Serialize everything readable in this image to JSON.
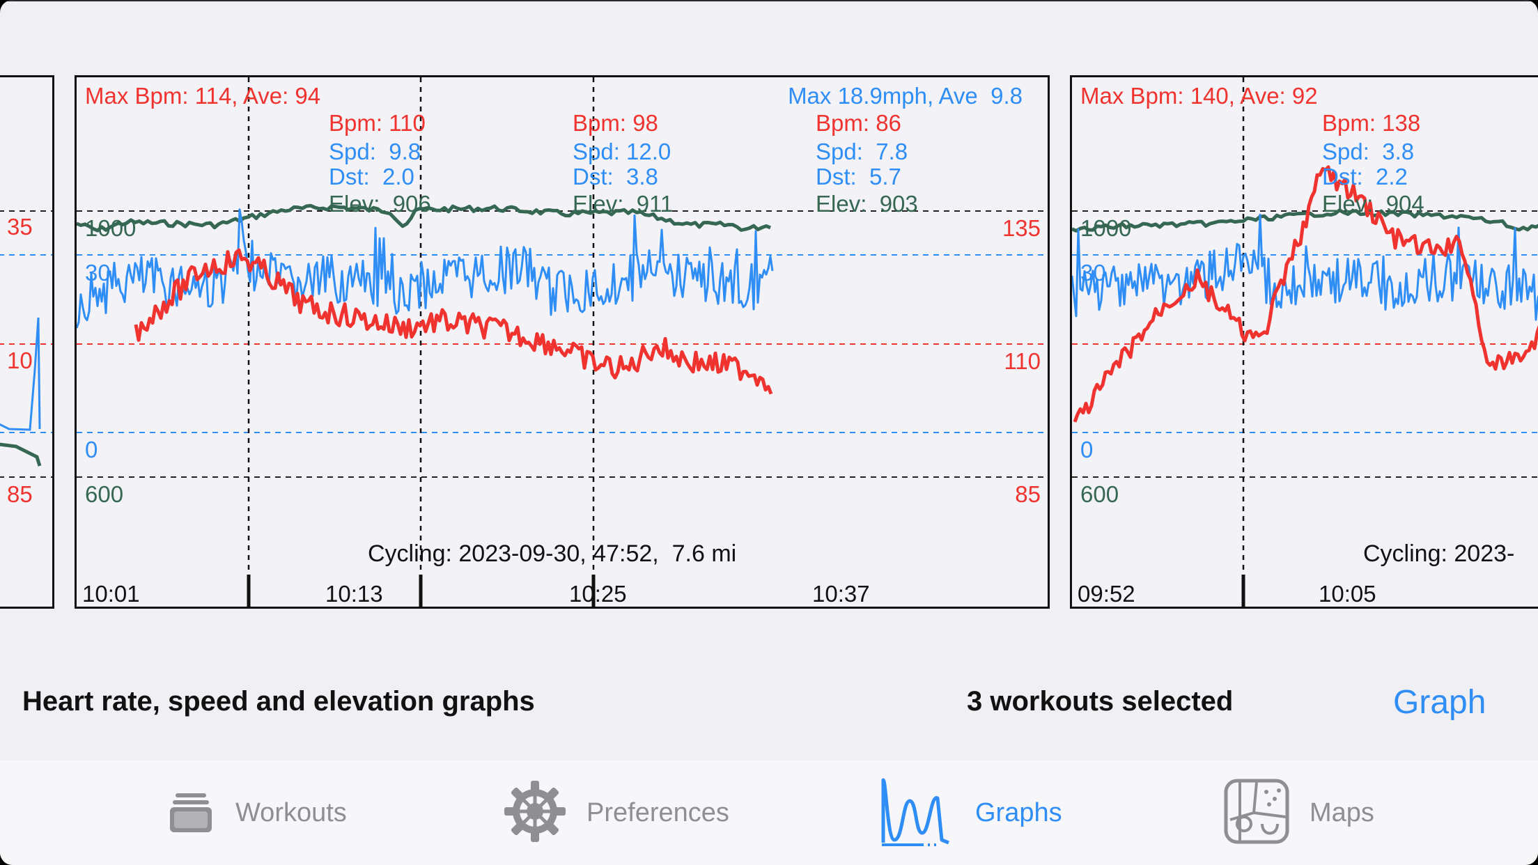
{
  "description": "Heart rate, speed and elevation graphs",
  "selection": {
    "count_label": "3 workouts selected",
    "action_label": "Graph"
  },
  "colors": {
    "heart_rate": "#f0332f",
    "speed": "#2f8ef5",
    "elevation": "#356753",
    "accent": "#2f8ef5"
  },
  "left_partial": {
    "labels": [
      "35",
      "10",
      "85"
    ]
  },
  "panels": [
    {
      "hr_summary": "Max Bpm: 114, Ave: 94",
      "speed_summary": "Max 18.9mph, Ave  9.8",
      "hr_axis": [
        "135",
        "110",
        "85"
      ],
      "elev_axis": [
        "1000",
        "600"
      ],
      "speed_axis": [
        "30",
        "0"
      ],
      "times": [
        "10:01",
        "10:13",
        "10:25",
        "10:37"
      ],
      "caption": "Cycling: 2023-09-30, 47:52,  7.6 mi",
      "readouts": [
        {
          "bpm": "Bpm: 110",
          "spd": "Spd:  9.8",
          "dst": "Dst:  2.0",
          "elev": "Elev:  906"
        },
        {
          "bpm": "Bpm: 98",
          "spd": "Spd: 12.0",
          "dst": "Dst:  3.8",
          "elev": "Elev:  911"
        },
        {
          "bpm": "Bpm: 86",
          "spd": "Spd:  7.8",
          "dst": "Dst:  5.7",
          "elev": "Elev:  903"
        }
      ]
    },
    {
      "hr_summary": "Max Bpm: 140, Ave: 92",
      "hr_axis": [],
      "elev_axis": [
        "1000",
        "600"
      ],
      "speed_axis": [
        "30",
        "0"
      ],
      "times": [
        "09:52",
        "10:05"
      ],
      "caption": "Cycling: 2023-",
      "readouts": [
        {
          "bpm": "Bpm: 138",
          "spd": "Spd:  3.8",
          "dst": "Dst:  2.2",
          "elev": "Elev:  904"
        }
      ]
    }
  ],
  "tabs": [
    {
      "label": "Workouts",
      "icon": "tray-stack-icon"
    },
    {
      "label": "Preferences",
      "icon": "gear-icon"
    },
    {
      "label": "Graphs",
      "icon": "graph-wave-icon"
    },
    {
      "label": "Maps",
      "icon": "map-icon"
    }
  ],
  "active_tab": "Graphs"
}
